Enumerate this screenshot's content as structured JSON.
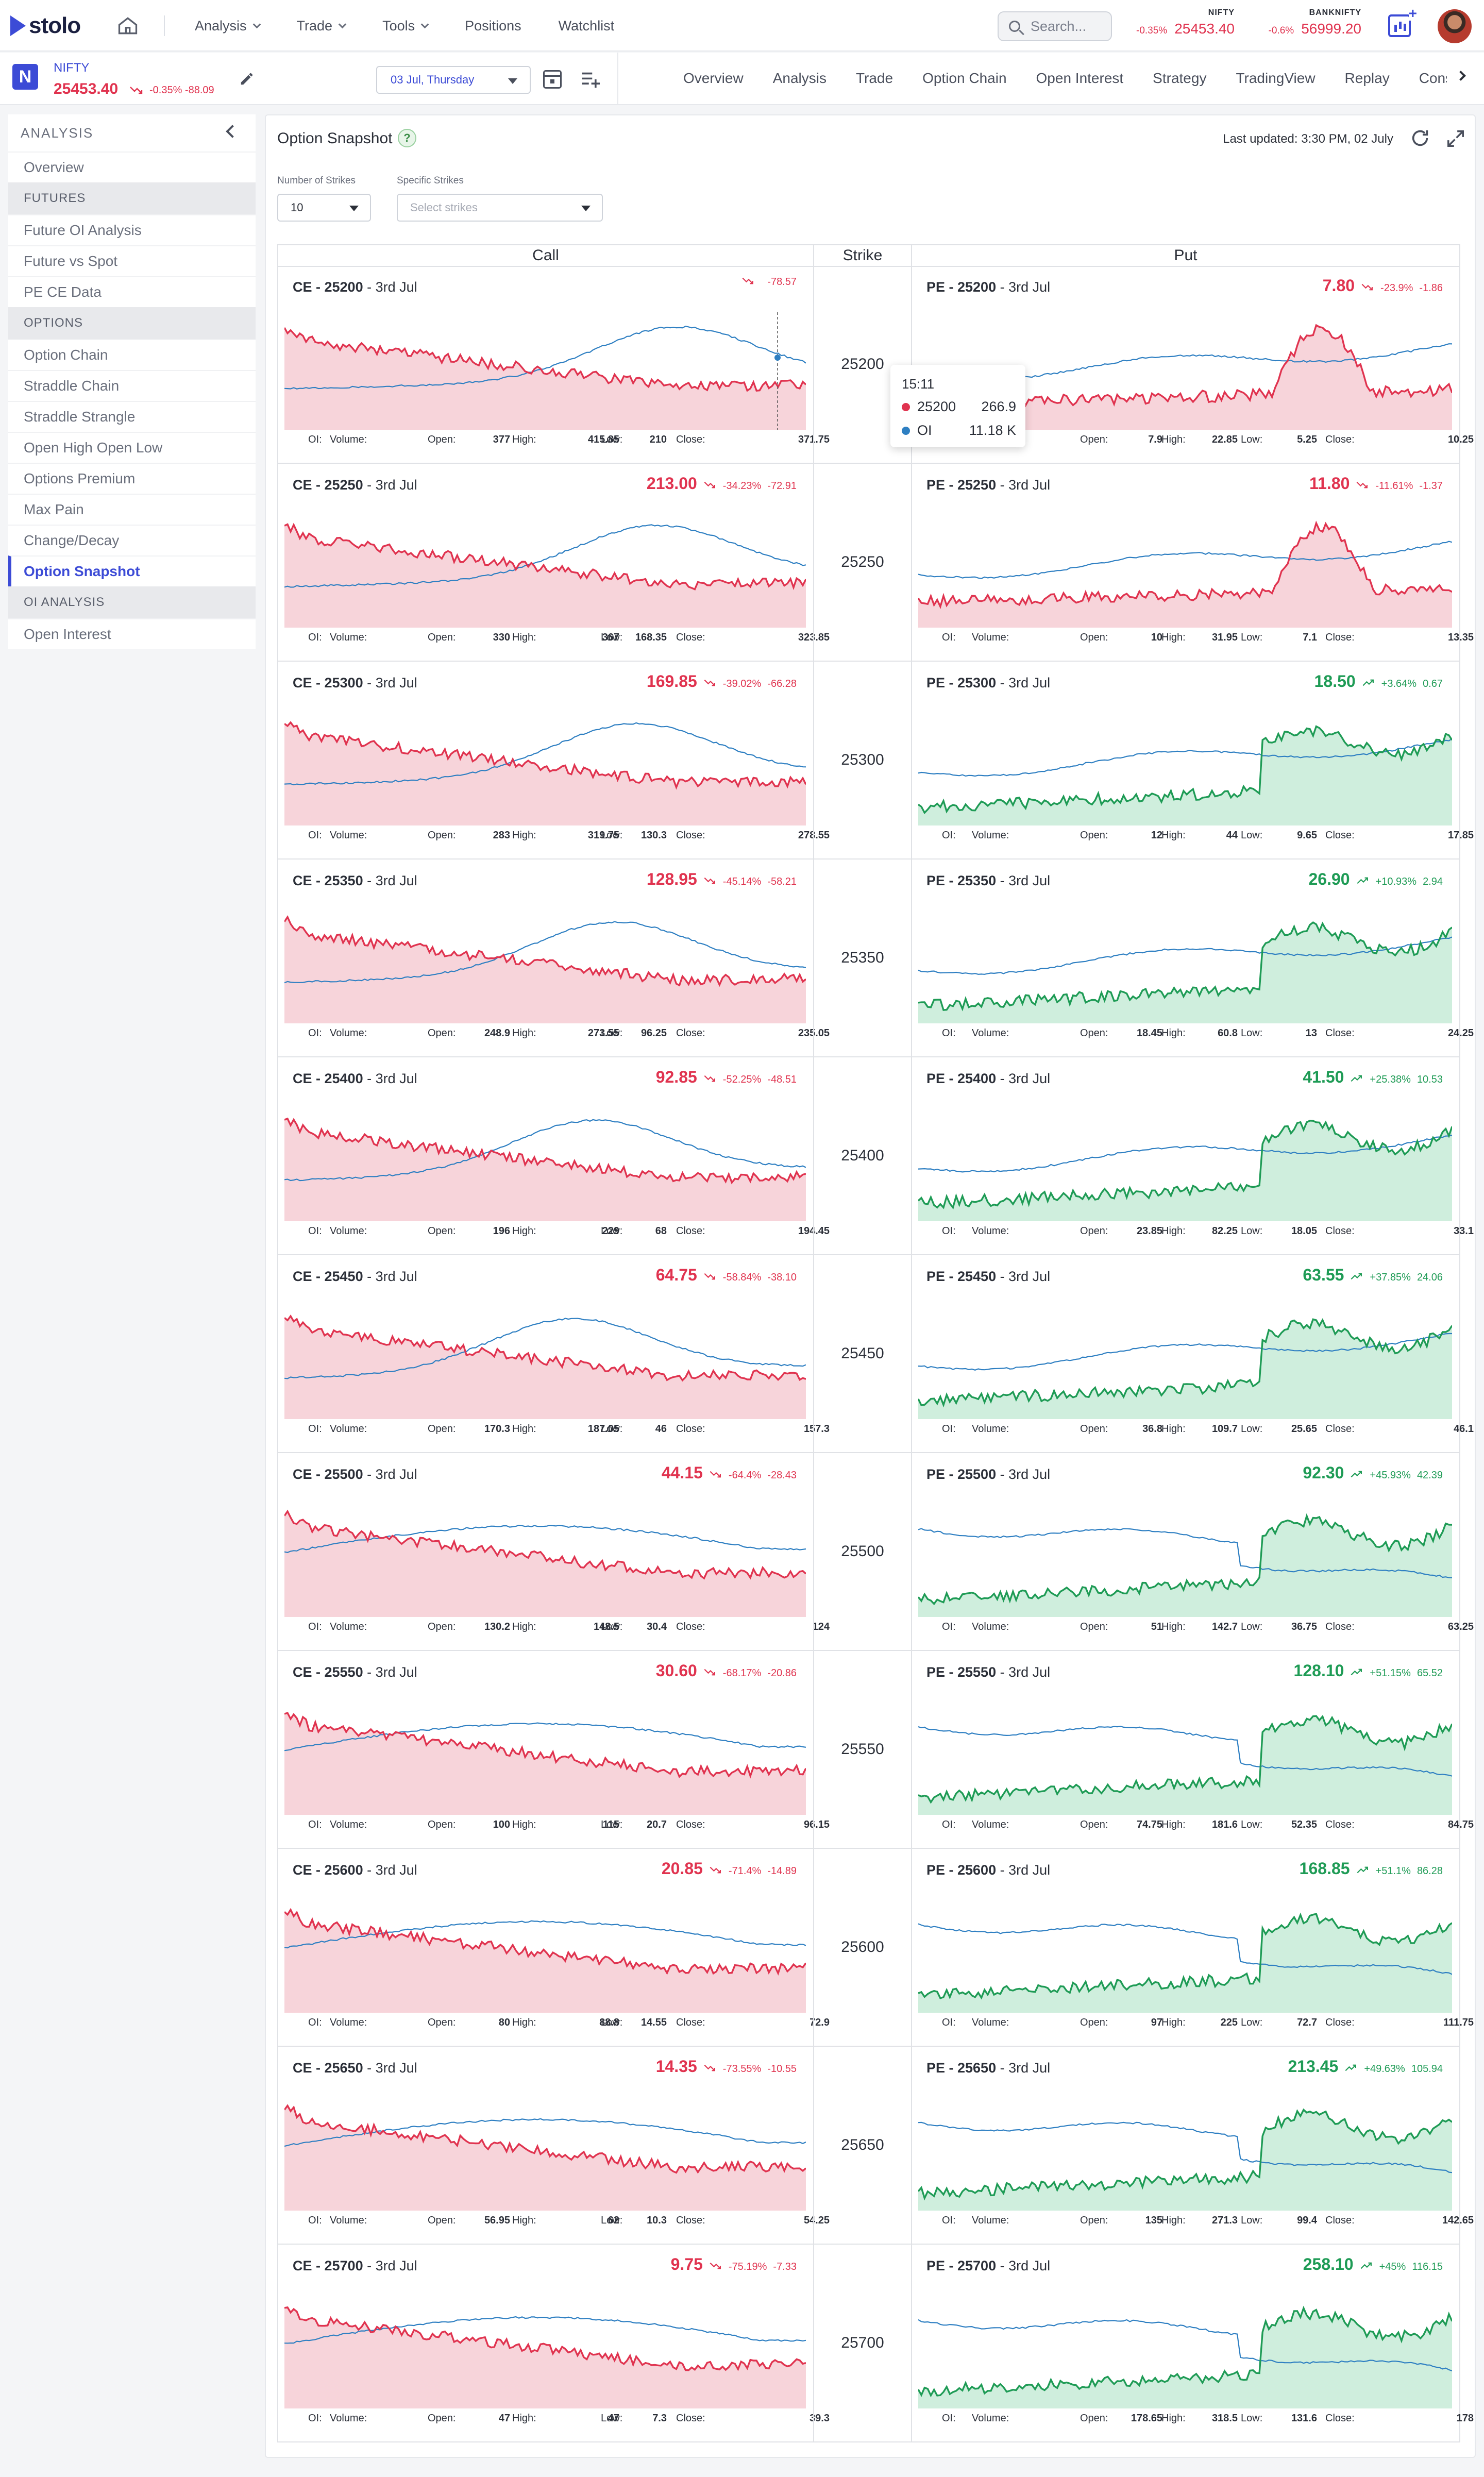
{
  "header": {
    "brand": "stolo",
    "nav": [
      {
        "label": "Analysis",
        "dropdown": true
      },
      {
        "label": "Trade",
        "dropdown": true
      },
      {
        "label": "Tools",
        "dropdown": true
      },
      {
        "label": "Positions",
        "dropdown": false
      },
      {
        "label": "Watchlist",
        "dropdown": false
      }
    ],
    "search_placeholder": "Search...",
    "indices": [
      {
        "name": "NIFTY",
        "pct": "-0.35%",
        "value": "25453.40"
      },
      {
        "name": "BANKNIFTY",
        "pct": "-0.6%",
        "value": "56999.20"
      }
    ]
  },
  "symbol_bar": {
    "badge": "N",
    "name": "NIFTY",
    "price": "25453.40",
    "change": "-0.35%  -88.09",
    "expiry": "03 Jul, Thursday",
    "tabs": [
      "Overview",
      "Analysis",
      "Trade",
      "Option Chain",
      "Open Interest",
      "Strategy",
      "TradingView",
      "Replay",
      "Constituents"
    ]
  },
  "sidebar": {
    "heading": "ANALYSIS",
    "sections": [
      {
        "title": null,
        "items": [
          "Overview"
        ]
      },
      {
        "title": "FUTURES",
        "items": [
          "Future OI Analysis",
          "Future vs Spot",
          "PE CE Data"
        ]
      },
      {
        "title": "OPTIONS",
        "items": [
          "Option Chain",
          "Straddle Chain",
          "Straddle Strangle",
          "Open High Open Low",
          "Options Premium",
          "Max Pain",
          "Change/Decay",
          "Option Snapshot"
        ]
      },
      {
        "title": "OI ANALYSIS",
        "items": [
          "Open Interest"
        ]
      }
    ],
    "active": "Option Snapshot"
  },
  "panel": {
    "title": "Option Snapshot",
    "help": "?",
    "last_updated": "Last updated: 3:30 PM, 02 July",
    "filters": {
      "strikes_label": "Number of Strikes",
      "strikes_value": "10",
      "specific_label": "Specific Strikes",
      "specific_placeholder": "Select strikes"
    },
    "columns": {
      "call": "Call",
      "strike": "Strike",
      "put": "Put"
    },
    "stat_labels": {
      "oi": "OI:",
      "volume": "Volume:",
      "open": "Open:",
      "high": "High:",
      "low": "Low:",
      "close": "Close:"
    },
    "tooltip": {
      "time": "15:11",
      "series": [
        {
          "label": "25200",
          "value": "266.9",
          "color": "#e0334f"
        },
        {
          "label": "OI",
          "value": "11.18 K",
          "color": "#2e7fc2"
        }
      ]
    },
    "rows": [
      {
        "strike": "25200",
        "ce": {
          "title": "CE - 25200",
          "expiry": "3rd Jul",
          "ltp": "",
          "pct": "",
          "abs": "-78.57",
          "dir": "down",
          "open": "377",
          "high": "415.85",
          "low": "210",
          "close": "371.75"
        },
        "pe": {
          "title": "PE - 25200",
          "expiry": "3rd Jul",
          "ltp": "7.80",
          "pct": "-23.9%",
          "abs": "-1.86",
          "dir": "down",
          "open": "7.9",
          "high": "22.85",
          "low": "5.25",
          "close": "10.25"
        }
      },
      {
        "strike": "25250",
        "ce": {
          "title": "CE - 25250",
          "expiry": "3rd Jul",
          "ltp": "213.00",
          "pct": "-34.23%",
          "abs": "-72.91",
          "dir": "down",
          "open": "330",
          "high": "367",
          "low": "168.35",
          "close": "323.85"
        },
        "pe": {
          "title": "PE - 25250",
          "expiry": "3rd Jul",
          "ltp": "11.80",
          "pct": "-11.61%",
          "abs": "-1.37",
          "dir": "down",
          "open": "10",
          "high": "31.95",
          "low": "7.1",
          "close": "13.35"
        }
      },
      {
        "strike": "25300",
        "ce": {
          "title": "CE - 25300",
          "expiry": "3rd Jul",
          "ltp": "169.85",
          "pct": "-39.02%",
          "abs": "-66.28",
          "dir": "down",
          "open": "283",
          "high": "319.75",
          "low": "130.3",
          "close": "278.55"
        },
        "pe": {
          "title": "PE - 25300",
          "expiry": "3rd Jul",
          "ltp": "18.50",
          "pct": "+3.64%",
          "abs": "0.67",
          "dir": "up",
          "open": "12",
          "high": "44",
          "low": "9.65",
          "close": "17.85"
        }
      },
      {
        "strike": "25350",
        "ce": {
          "title": "CE - 25350",
          "expiry": "3rd Jul",
          "ltp": "128.95",
          "pct": "-45.14%",
          "abs": "-58.21",
          "dir": "down",
          "open": "248.9",
          "high": "273.55",
          "low": "96.25",
          "close": "235.05"
        },
        "pe": {
          "title": "PE - 25350",
          "expiry": "3rd Jul",
          "ltp": "26.90",
          "pct": "+10.93%",
          "abs": "2.94",
          "dir": "up",
          "open": "18.45",
          "high": "60.8",
          "low": "13",
          "close": "24.25"
        }
      },
      {
        "strike": "25400",
        "ce": {
          "title": "CE - 25400",
          "expiry": "3rd Jul",
          "ltp": "92.85",
          "pct": "-52.25%",
          "abs": "-48.51",
          "dir": "down",
          "open": "196",
          "high": "229",
          "low": "68",
          "close": "194.45"
        },
        "pe": {
          "title": "PE - 25400",
          "expiry": "3rd Jul",
          "ltp": "41.50",
          "pct": "+25.38%",
          "abs": "10.53",
          "dir": "up",
          "open": "23.85",
          "high": "82.25",
          "low": "18.05",
          "close": "33.1"
        }
      },
      {
        "strike": "25450",
        "ce": {
          "title": "CE - 25450",
          "expiry": "3rd Jul",
          "ltp": "64.75",
          "pct": "-58.84%",
          "abs": "-38.10",
          "dir": "down",
          "open": "170.3",
          "high": "187.05",
          "low": "46",
          "close": "157.3"
        },
        "pe": {
          "title": "PE - 25450",
          "expiry": "3rd Jul",
          "ltp": "63.55",
          "pct": "+37.85%",
          "abs": "24.06",
          "dir": "up",
          "open": "36.8",
          "high": "109.7",
          "low": "25.65",
          "close": "46.1"
        }
      },
      {
        "strike": "25500",
        "ce": {
          "title": "CE - 25500",
          "expiry": "3rd Jul",
          "ltp": "44.15",
          "pct": "-64.4%",
          "abs": "-28.43",
          "dir": "down",
          "open": "130.2",
          "high": "148.5",
          "low": "30.4",
          "close": "124"
        },
        "pe": {
          "title": "PE - 25500",
          "expiry": "3rd Jul",
          "ltp": "92.30",
          "pct": "+45.93%",
          "abs": "42.39",
          "dir": "up",
          "open": "51",
          "high": "142.7",
          "low": "36.75",
          "close": "63.25"
        }
      },
      {
        "strike": "25550",
        "ce": {
          "title": "CE - 25550",
          "expiry": "3rd Jul",
          "ltp": "30.60",
          "pct": "-68.17%",
          "abs": "-20.86",
          "dir": "down",
          "open": "100",
          "high": "115",
          "low": "20.7",
          "close": "96.15"
        },
        "pe": {
          "title": "PE - 25550",
          "expiry": "3rd Jul",
          "ltp": "128.10",
          "pct": "+51.15%",
          "abs": "65.52",
          "dir": "up",
          "open": "74.75",
          "high": "181.6",
          "low": "52.35",
          "close": "84.75"
        }
      },
      {
        "strike": "25600",
        "ce": {
          "title": "CE - 25600",
          "expiry": "3rd Jul",
          "ltp": "20.85",
          "pct": "-71.4%",
          "abs": "-14.89",
          "dir": "down",
          "open": "80",
          "high": "88.8",
          "low": "14.55",
          "close": "72.9"
        },
        "pe": {
          "title": "PE - 25600",
          "expiry": "3rd Jul",
          "ltp": "168.85",
          "pct": "+51.1%",
          "abs": "86.28",
          "dir": "up",
          "open": "97",
          "high": "225",
          "low": "72.7",
          "close": "111.75"
        }
      },
      {
        "strike": "25650",
        "ce": {
          "title": "CE - 25650",
          "expiry": "3rd Jul",
          "ltp": "14.35",
          "pct": "-73.55%",
          "abs": "-10.55",
          "dir": "down",
          "open": "56.95",
          "high": "62",
          "low": "10.3",
          "close": "54.25"
        },
        "pe": {
          "title": "PE - 25650",
          "expiry": "3rd Jul",
          "ltp": "213.45",
          "pct": "+49.63%",
          "abs": "105.94",
          "dir": "up",
          "open": "135",
          "high": "271.3",
          "low": "99.4",
          "close": "142.65"
        }
      },
      {
        "strike": "25700",
        "ce": {
          "title": "CE - 25700",
          "expiry": "3rd Jul",
          "ltp": "9.75",
          "pct": "-75.19%",
          "abs": "-7.33",
          "dir": "down",
          "open": "47",
          "high": "47",
          "low": "7.3",
          "close": "39.3"
        },
        "pe": {
          "title": "PE - 25700",
          "expiry": "3rd Jul",
          "ltp": "258.10",
          "pct": "+45%",
          "abs": "116.15",
          "dir": "up",
          "open": "178.65",
          "high": "318.5",
          "low": "131.6",
          "close": "178"
        }
      }
    ]
  },
  "colors": {
    "accent": "#3c4bd6",
    "down": "#e0334f",
    "up": "#1e9b55",
    "oi_line": "#2e7fc2",
    "down_fill": "#f7d4da",
    "up_fill": "#cfeedd"
  }
}
